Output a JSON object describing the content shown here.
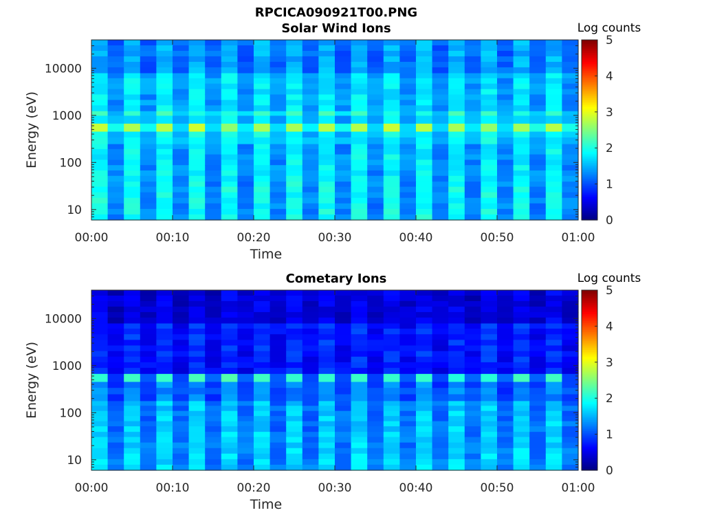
{
  "figure": {
    "title": "RPCICA090921T00.PNG",
    "colorbar_label": "Log counts"
  },
  "chart_data": [
    {
      "type": "heatmap",
      "title": "Solar Wind Ions",
      "xlabel": "Time",
      "ylabel": "Energy (eV)",
      "x_tick_labels": [
        "00:00",
        "00:10",
        "00:20",
        "00:30",
        "00:40",
        "00:50",
        "01:00"
      ],
      "x_range_minutes": [
        0,
        60
      ],
      "y_scale": "log",
      "y_range": [
        6,
        40000
      ],
      "y_ticks": [
        10,
        100,
        1000,
        10000
      ],
      "y_tick_labels": [
        "10",
        "100",
        "1000",
        "10000"
      ],
      "colorbar": {
        "label": "Log counts",
        "range": [
          0,
          5
        ],
        "ticks": [
          "0",
          "1",
          "2",
          "3",
          "4",
          "5"
        ],
        "colormap": "jet"
      },
      "time_bins": 30,
      "energy_bands": [
        {
          "e_low": 6,
          "e_high": 40,
          "bright": 1.95,
          "dim": 1.25
        },
        {
          "e_low": 40,
          "e_high": 250,
          "bright": 1.85,
          "dim": 1.3
        },
        {
          "e_low": 250,
          "e_high": 460,
          "bright": 1.9,
          "dim": 1.5
        },
        {
          "e_low": 460,
          "e_high": 680,
          "bright": 2.75,
          "dim": 1.85
        },
        {
          "e_low": 680,
          "e_high": 1000,
          "bright": 1.8,
          "dim": 1.45
        },
        {
          "e_low": 1000,
          "e_high": 1250,
          "bright": 2.1,
          "dim": 1.6
        },
        {
          "e_low": 1250,
          "e_high": 8000,
          "bright": 1.8,
          "dim": 1.35
        },
        {
          "e_low": 8000,
          "e_high": 40000,
          "bright": 1.5,
          "dim": 1.1
        }
      ]
    },
    {
      "type": "heatmap",
      "title": "Cometary Ions",
      "xlabel": "Time",
      "ylabel": "Energy (eV)",
      "x_tick_labels": [
        "00:00",
        "00:10",
        "00:20",
        "00:30",
        "00:40",
        "00:50",
        "01:00"
      ],
      "x_range_minutes": [
        0,
        60
      ],
      "y_scale": "log",
      "y_range": [
        6,
        40000
      ],
      "y_ticks": [
        10,
        100,
        1000,
        10000
      ],
      "y_tick_labels": [
        "10",
        "100",
        "1000",
        "10000"
      ],
      "colorbar": {
        "label": "Log counts",
        "range": [
          0,
          5
        ],
        "ticks": [
          "0",
          "1",
          "2",
          "3",
          "4",
          "5"
        ],
        "colormap": "jet"
      },
      "time_bins": 30,
      "energy_bands": [
        {
          "e_low": 6,
          "e_high": 40,
          "bright": 1.7,
          "dim": 1.2
        },
        {
          "e_low": 40,
          "e_high": 180,
          "bright": 1.65,
          "dim": 1.15
        },
        {
          "e_low": 180,
          "e_high": 460,
          "bright": 1.3,
          "dim": 0.95
        },
        {
          "e_low": 460,
          "e_high": 680,
          "bright": 2.1,
          "dim": 1.0
        },
        {
          "e_low": 680,
          "e_high": 8000,
          "bright": 0.85,
          "dim": 0.6
        },
        {
          "e_low": 8000,
          "e_high": 40000,
          "bright": 0.55,
          "dim": 0.35
        }
      ]
    }
  ]
}
